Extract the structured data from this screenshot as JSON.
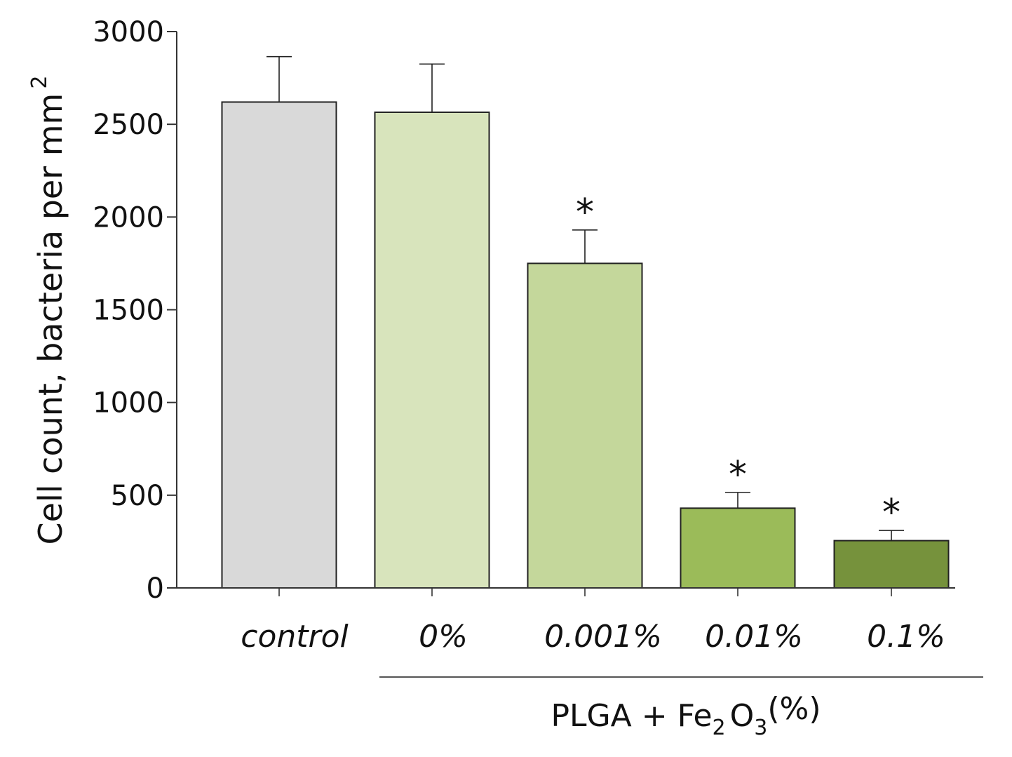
{
  "chart_data": {
    "type": "bar",
    "title": "",
    "ylabel": "Cell count, bacteria per mm",
    "ylabel_superscript": "2",
    "xlabel": "",
    "group_label": {
      "prefix": "PLGA + Fe",
      "sub1": "2",
      "mid": "O",
      "sub2": "3",
      "suffix": "(%)"
    },
    "ylim": [
      0,
      3000
    ],
    "yticks": [
      0,
      500,
      1000,
      1500,
      2000,
      2500,
      3000
    ],
    "categories": [
      "control",
      "0%",
      "0.001%",
      "0.01%",
      "0.1%"
    ],
    "values": [
      2620,
      2565,
      1750,
      430,
      255
    ],
    "errors": [
      245,
      260,
      180,
      85,
      55
    ],
    "significance": [
      "",
      "",
      "*",
      "*",
      "*"
    ],
    "colors": [
      "#d9d9d9",
      "#d8e4bc",
      "#c4d79b",
      "#9bbb59",
      "#76923c"
    ],
    "grid": false,
    "legend": "none"
  }
}
